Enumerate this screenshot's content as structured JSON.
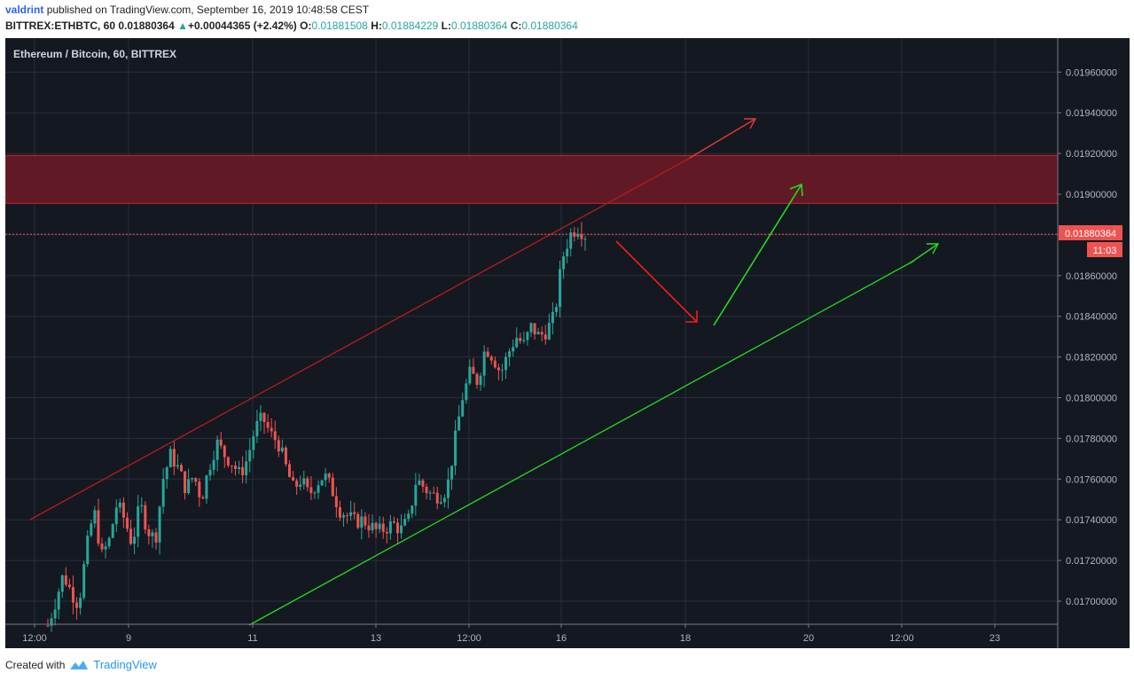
{
  "header": {
    "author": "valdrint",
    "published_text": "published on TradingView.com, September 16, 2019 10:48:58 CEST",
    "symbol": "BITTREX:ETHBTC, 60",
    "last": "0.01880364",
    "change": "+0.00044365 (+2.42%)",
    "o_label": "O:",
    "o_value": "0.01881508",
    "h_label": "H:",
    "h_value": "0.01884229",
    "l_label": "L:",
    "l_value": "0.01880364",
    "c_label": "C:",
    "c_value": "0.01880364"
  },
  "footer": {
    "created_with": "Created with",
    "brand": "TradingView"
  },
  "chart_data": {
    "type": "candlestick",
    "title": "Ethereum / Bitcoin, 60, BITTREX",
    "ylim": [
      0.0169,
      0.01975
    ],
    "y_ticks": [
      "0.01700000",
      "0.01720000",
      "0.01740000",
      "0.01760000",
      "0.01780000",
      "0.01800000",
      "0.01820000",
      "0.01840000",
      "0.01860000",
      "0.01880000",
      "0.01900000",
      "0.01920000",
      "0.01940000",
      "0.01960000"
    ],
    "x_ticks": [
      "12:00",
      "9",
      "11",
      "13",
      "12:00",
      "16",
      "18",
      "20",
      "12:00",
      "23"
    ],
    "last_price_label": "0.01880364",
    "countdown_label": "11:03",
    "resistance_zone": [
      0.018955,
      0.01919
    ],
    "colors": {
      "up": "#26a69a",
      "down": "#ef5350",
      "zone": "#6d1a26",
      "channel_top": "#b71c1c",
      "channel_bottom": "#22dd22",
      "arrow_red": "#f21d1d",
      "arrow_green": "#22dd22",
      "bg": "#141821",
      "grid": "#2a2e39"
    },
    "series_path": [
      0.01688,
      0.017,
      0.01713,
      0.01705,
      0.01698,
      0.01725,
      0.01745,
      0.01722,
      0.0173,
      0.01748,
      0.0174,
      0.01728,
      0.01748,
      0.01735,
      0.0173,
      0.0176,
      0.01772,
      0.01765,
      0.01755,
      0.01762,
      0.0175,
      0.01766,
      0.01778,
      0.01772,
      0.01768,
      0.01762,
      0.0177,
      0.01785,
      0.0179,
      0.01782,
      0.01778,
      0.01766,
      0.01755,
      0.0176,
      0.01752,
      0.01758,
      0.01762,
      0.01755,
      0.01745,
      0.01742,
      0.01739,
      0.0174,
      0.01737,
      0.01734,
      0.01736,
      0.01738,
      0.01735,
      0.0174,
      0.0176,
      0.01756,
      0.01752,
      0.01752,
      0.01755,
      0.01778,
      0.018,
      0.01812,
      0.01808,
      0.01825,
      0.0182,
      0.01812,
      0.01822,
      0.0183,
      0.01826,
      0.01835,
      0.0183,
      0.01833,
      0.0184,
      0.01868,
      0.0188,
      0.01884,
      0.0188
    ]
  }
}
